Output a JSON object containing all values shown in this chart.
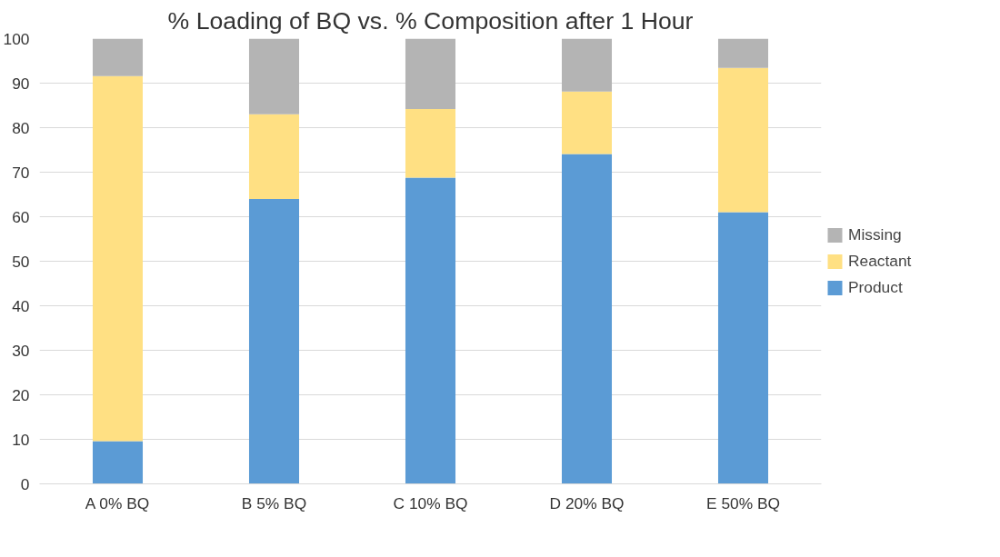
{
  "chart_data": {
    "type": "bar",
    "title": "% Loading of BQ vs. % Composition after 1 Hour",
    "categories": [
      "A 0% BQ",
      "B 5% BQ",
      "C 10% BQ",
      "D 20% BQ",
      "E 50% BQ"
    ],
    "stacked": true,
    "series": [
      {
        "name": "Product",
        "color": "#5b9bd5",
        "values": [
          9.6,
          64,
          68.8,
          74.1,
          61
        ]
      },
      {
        "name": "Reactant",
        "color": "#ffe083",
        "values": [
          82,
          19,
          15.4,
          14,
          32.4
        ]
      },
      {
        "name": "Missing",
        "color": "#b4b4b4",
        "values": [
          8.4,
          17,
          15.8,
          11.9,
          6.6
        ]
      }
    ],
    "ylim": [
      0,
      100
    ],
    "yticks": [
      0,
      10,
      20,
      30,
      40,
      50,
      60,
      70,
      80,
      90,
      100
    ],
    "grid": "y",
    "legend": "right"
  }
}
